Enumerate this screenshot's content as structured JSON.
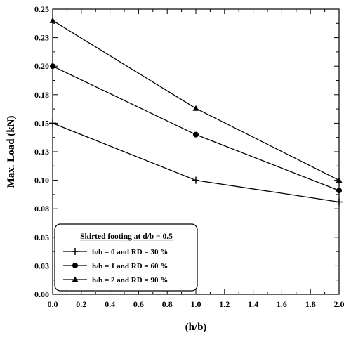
{
  "chart_data": {
    "type": "line",
    "title": "",
    "xlabel": "(h/b)",
    "ylabel": "Max. Load (kN)",
    "xlim": [
      0.0,
      2.0
    ],
    "ylim": [
      0.0,
      0.25
    ],
    "x_ticks": [
      "0.0",
      "0.2",
      "0.4",
      "0.6",
      "0.8",
      "1.0",
      "1.2",
      "1.4",
      "1.6",
      "1.8",
      "2.0"
    ],
    "y_ticks": [
      "0.00",
      "0.03",
      "0.05",
      "0.08",
      "0.10",
      "0.13",
      "0.15",
      "0.18",
      "0.20",
      "0.23",
      "0.25"
    ],
    "grid": false,
    "legend_position": "bottom-left",
    "legend_title": "Skirted footing at d/b = 0.5",
    "x": [
      0.0,
      1.0,
      2.0
    ],
    "series": [
      {
        "name": "h/b = 0 and RD = 30 %",
        "marker": "plus",
        "values": [
          0.15,
          0.1,
          0.081
        ]
      },
      {
        "name": "h/b = 1 and RD = 60 %",
        "marker": "circle",
        "values": [
          0.2,
          0.14,
          0.091
        ]
      },
      {
        "name": "h/b = 2 and RD = 90 %",
        "marker": "triangle",
        "values": [
          0.24,
          0.163,
          0.1
        ]
      }
    ]
  }
}
